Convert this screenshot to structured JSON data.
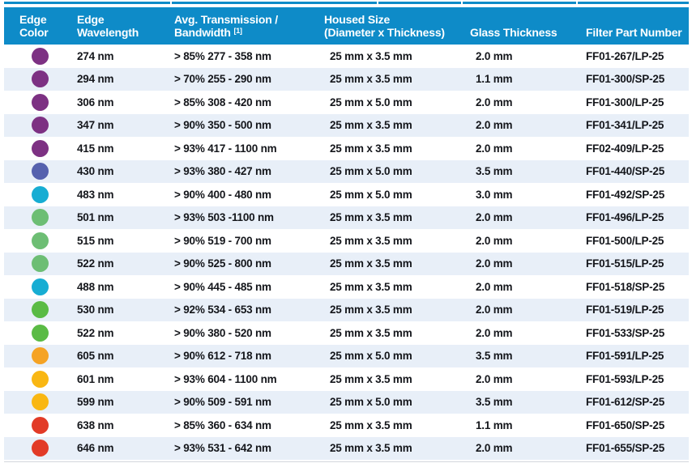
{
  "colors": {
    "header_bg": "#0E8BC8",
    "stripe_bg": "#E8EFF8",
    "text": "#14161B",
    "header_text": "#FFFFFF"
  },
  "table": {
    "columns": [
      {
        "id": "edge-color",
        "line1": "Edge",
        "line2": "Color"
      },
      {
        "id": "edge-wavelength",
        "line1": "Edge",
        "line2": "Wavelength"
      },
      {
        "id": "avg-transmission",
        "line1": "Avg. Transmission /",
        "line2": "Bandwidth",
        "sup": "[1]"
      },
      {
        "id": "housed-size",
        "line1": "Housed Size",
        "line2": "(Diameter x Thickness)"
      },
      {
        "id": "glass-thickness",
        "line2": "Glass Thickness"
      },
      {
        "id": "filter-part-number",
        "line2": "Filter Part Number"
      }
    ],
    "rows": [
      {
        "edge_color": "#7D3183",
        "edge_color_name": "purple",
        "wavelength": "274 nm",
        "transmission": "> 85% 277 - 358 nm",
        "housed_size": "25 mm x 3.5 mm",
        "glass_thickness": "2.0 mm",
        "part_number": "FF01-267/LP-25"
      },
      {
        "edge_color": "#7D3183",
        "edge_color_name": "purple",
        "wavelength": "294 nm",
        "transmission": "> 70% 255 - 290 nm",
        "housed_size": "25 mm x 3.5 mm",
        "glass_thickness": "1.1 mm",
        "part_number": "FF01-300/SP-25"
      },
      {
        "edge_color": "#7D3183",
        "edge_color_name": "purple",
        "wavelength": "306 nm",
        "transmission": "> 85% 308 - 420 nm",
        "housed_size": "25 mm x 5.0 mm",
        "glass_thickness": "2.0 mm",
        "part_number": "FF01-300/LP-25"
      },
      {
        "edge_color": "#7D3183",
        "edge_color_name": "purple",
        "wavelength": "347 nm",
        "transmission": "> 90% 350 - 500 nm",
        "housed_size": "25 mm x 3.5 mm",
        "glass_thickness": "2.0 mm",
        "part_number": "FF01-341/LP-25"
      },
      {
        "edge_color": "#7D3183",
        "edge_color_name": "purple",
        "wavelength": "415 nm",
        "transmission": "> 93% 417 - 1100 nm",
        "housed_size": "25 mm x 3.5 mm",
        "glass_thickness": "2.0 mm",
        "part_number": "FF02-409/LP-25"
      },
      {
        "edge_color": "#5561AE",
        "edge_color_name": "indigo",
        "wavelength": "430 nm",
        "transmission": "> 93% 380 - 427 nm",
        "housed_size": "25 mm x 5.0 mm",
        "glass_thickness": "3.5 mm",
        "part_number": "FF01-440/SP-25"
      },
      {
        "edge_color": "#17ADD3",
        "edge_color_name": "cyan",
        "wavelength": "483 nm",
        "transmission": "> 90% 400 - 480 nm",
        "housed_size": "25 mm x 5.0 mm",
        "glass_thickness": "3.0 mm",
        "part_number": "FF01-492/SP-25"
      },
      {
        "edge_color": "#6DBE74",
        "edge_color_name": "soft-green",
        "wavelength": "501 nm",
        "transmission": "> 93% 503 -1100 nm",
        "housed_size": "25 mm x 3.5 mm",
        "glass_thickness": "2.0 mm",
        "part_number": "FF01-496/LP-25"
      },
      {
        "edge_color": "#6DBE74",
        "edge_color_name": "soft-green",
        "wavelength": "515 nm",
        "transmission": "> 90% 519 - 700 nm",
        "housed_size": "25 mm x 3.5 mm",
        "glass_thickness": "2.0 mm",
        "part_number": "FF01-500/LP-25"
      },
      {
        "edge_color": "#6DBE74",
        "edge_color_name": "soft-green",
        "wavelength": "522 nm",
        "transmission": "> 90% 525 - 800 nm",
        "housed_size": "25 mm x 3.5 mm",
        "glass_thickness": "2.0 mm",
        "part_number": "FF01-515/LP-25"
      },
      {
        "edge_color": "#17ADD3",
        "edge_color_name": "cyan",
        "wavelength": "488 nm",
        "transmission": "> 90% 445 - 485 nm",
        "housed_size": "25 mm x 3.5 mm",
        "glass_thickness": "2.0 mm",
        "part_number": "FF01-518/SP-25"
      },
      {
        "edge_color": "#5ABB45",
        "edge_color_name": "green",
        "wavelength": "530 nm",
        "transmission": "> 92% 534 - 653 nm",
        "housed_size": "25 mm x 3.5 mm",
        "glass_thickness": "2.0 mm",
        "part_number": "FF01-519/LP-25"
      },
      {
        "edge_color": "#5ABB45",
        "edge_color_name": "green",
        "wavelength": "522 nm",
        "transmission": "> 90% 380 - 520 nm",
        "housed_size": "25 mm x 3.5 mm",
        "glass_thickness": "2.0 mm",
        "part_number": "FF01-533/SP-25"
      },
      {
        "edge_color": "#F5A325",
        "edge_color_name": "orange",
        "wavelength": "605 nm",
        "transmission": "> 90% 612 - 718 nm",
        "housed_size": "25 mm x 5.0 mm",
        "glass_thickness": "3.5 mm",
        "part_number": "FF01-591/LP-25"
      },
      {
        "edge_color": "#F9B713",
        "edge_color_name": "yellow",
        "wavelength": "601 nm",
        "transmission": "> 93% 604 - 1100 nm",
        "housed_size": "25 mm x 3.5 mm",
        "glass_thickness": "2.0 mm",
        "part_number": "FF01-593/LP-25"
      },
      {
        "edge_color": "#F9B713",
        "edge_color_name": "yellow",
        "wavelength": "599 nm",
        "transmission": "> 90% 509 - 591 nm",
        "housed_size": "25 mm x 5.0 mm",
        "glass_thickness": "3.5 mm",
        "part_number": "FF01-612/SP-25"
      },
      {
        "edge_color": "#E23B27",
        "edge_color_name": "red",
        "wavelength": "638 nm",
        "transmission": "> 85% 360 - 634 nm",
        "housed_size": "25 mm x 3.5 mm",
        "glass_thickness": "1.1 mm",
        "part_number": "FF01-650/SP-25"
      },
      {
        "edge_color": "#E23B27",
        "edge_color_name": "red",
        "wavelength": "646 nm",
        "transmission": "> 93% 531 - 642 nm",
        "housed_size": "25 mm x 3.5 mm",
        "glass_thickness": "2.0 mm",
        "part_number": "FF01-655/SP-25"
      }
    ]
  }
}
